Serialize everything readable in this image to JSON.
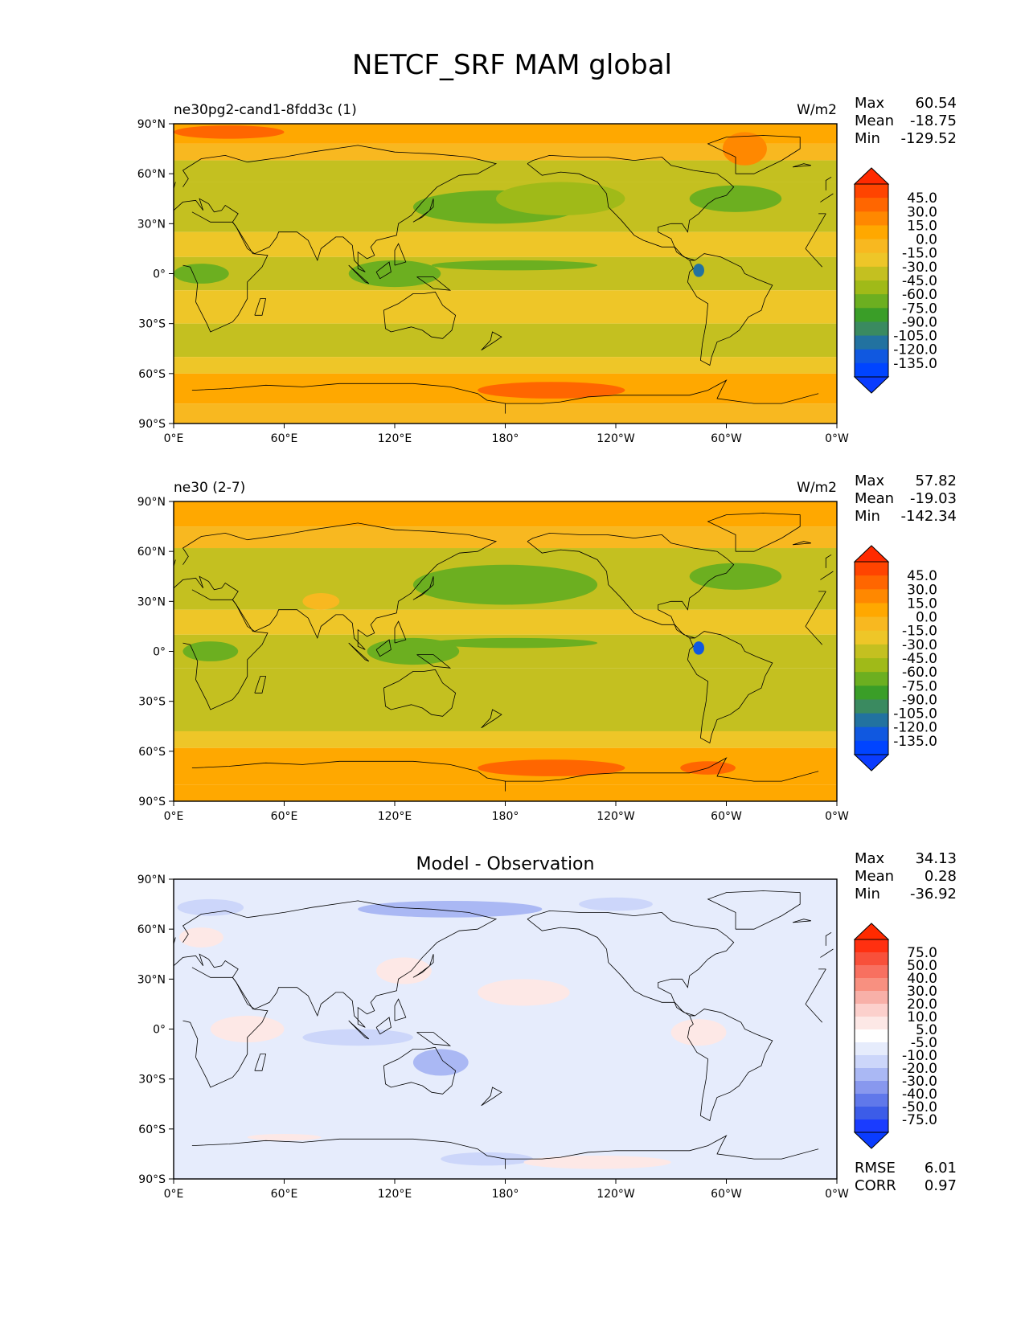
{
  "figure": {
    "title": "NETCF_SRF MAM global"
  },
  "chart_data": [
    {
      "type": "heatmap",
      "title_left": "ne30pg2-cand1-8fdd3c (1)",
      "title_center": "",
      "units": "W/m2",
      "stats": [
        {
          "label": "Max",
          "value": "60.54"
        },
        {
          "label": "Mean",
          "value": "-18.75"
        },
        {
          "label": "Min",
          "value": "-129.52"
        }
      ],
      "yticks": [
        "90°N",
        "60°N",
        "30°N",
        "0°",
        "30°S",
        "60°S",
        "90°S"
      ],
      "xticks": [
        "0°E",
        "60°E",
        "120°E",
        "180°",
        "120°W",
        "60°W",
        "0°W"
      ],
      "colorbar_labels": [
        "45.0",
        "30.0",
        "15.0",
        "0.0",
        "-15.0",
        "-30.0",
        "-45.0",
        "-60.0",
        "-75.0",
        "-90.0",
        "-105.0",
        "-120.0",
        "-135.0"
      ],
      "colorbar_colors": [
        "#ff4400",
        "#ff6600",
        "#ff8800",
        "#ffa800",
        "#f8b820",
        "#eec628",
        "#c4c020",
        "#a0ba18",
        "#6caf20",
        "#3a9e28",
        "#3a8a60",
        "#2272a0",
        "#1058e0",
        "#0044ff"
      ],
      "extremes": {
        "top": "#ff2a00",
        "bottom": "#0a3cff"
      },
      "bands": [
        {
          "lat_top": 90,
          "lat_bottom": 78,
          "level": "15.0"
        },
        {
          "lat_top": 78,
          "lat_bottom": 68,
          "level": "0.0"
        },
        {
          "lat_top": 68,
          "lat_bottom": 55,
          "level": "-30.0"
        },
        {
          "lat_top": 55,
          "lat_bottom": 25,
          "level": "-30.0"
        },
        {
          "lat_top": 25,
          "lat_bottom": 10,
          "level": "-15.0"
        },
        {
          "lat_top": 10,
          "lat_bottom": -10,
          "level": "-30.0"
        },
        {
          "lat_top": -10,
          "lat_bottom": -30,
          "level": "-15.0"
        },
        {
          "lat_top": -30,
          "lat_bottom": -50,
          "level": "-30.0"
        },
        {
          "lat_top": -50,
          "lat_bottom": -60,
          "level": "-15.0"
        },
        {
          "lat_top": -60,
          "lat_bottom": -78,
          "level": "15.0"
        },
        {
          "lat_top": -78,
          "lat_bottom": -90,
          "level": "0.0"
        }
      ],
      "anomalies": [
        {
          "lon": 175,
          "lat": 40,
          "rlon": 45,
          "rlat": 10,
          "level": "-60.0"
        },
        {
          "lon": 210,
          "lat": 45,
          "rlon": 35,
          "rlat": 10,
          "level": "-45.0"
        },
        {
          "lon": 305,
          "lat": 45,
          "rlon": 25,
          "rlat": 8,
          "level": "-60.0"
        },
        {
          "lon": 185,
          "lat": 5,
          "rlon": 45,
          "rlat": 3,
          "level": "-60.0"
        },
        {
          "lon": 285,
          "lat": 2,
          "rlon": 3,
          "rlat": 4,
          "level": "-105.0"
        },
        {
          "lon": 15,
          "lat": 0,
          "rlon": 15,
          "rlat": 6,
          "level": "-60.0"
        },
        {
          "lon": 120,
          "lat": 0,
          "rlon": 25,
          "rlat": 8,
          "level": "-60.0"
        },
        {
          "lon": 310,
          "lat": 75,
          "rlon": 12,
          "rlat": 10,
          "level": "30.0"
        },
        {
          "lon": 205,
          "lat": -70,
          "rlon": 40,
          "rlat": 5,
          "level": "45.0"
        },
        {
          "lon": 30,
          "lat": 85,
          "rlon": 30,
          "rlat": 4,
          "level": "45.0"
        }
      ]
    },
    {
      "type": "heatmap",
      "title_left": "ne30 (2-7)",
      "title_center": "",
      "units": "W/m2",
      "stats": [
        {
          "label": "Max",
          "value": "57.82"
        },
        {
          "label": "Mean",
          "value": "-19.03"
        },
        {
          "label": "Min",
          "value": "-142.34"
        }
      ],
      "yticks": [
        "90°N",
        "60°N",
        "30°N",
        "0°",
        "30°S",
        "60°S",
        "90°S"
      ],
      "xticks": [
        "0°E",
        "60°E",
        "120°E",
        "180°",
        "120°W",
        "60°W",
        "0°W"
      ],
      "colorbar_labels": [
        "45.0",
        "30.0",
        "15.0",
        "0.0",
        "-15.0",
        "-30.0",
        "-45.0",
        "-60.0",
        "-75.0",
        "-90.0",
        "-105.0",
        "-120.0",
        "-135.0"
      ],
      "colorbar_colors": [
        "#ff4400",
        "#ff6600",
        "#ff8800",
        "#ffa800",
        "#f8b820",
        "#eec628",
        "#c4c020",
        "#a0ba18",
        "#6caf20",
        "#3a9e28",
        "#3a8a60",
        "#2272a0",
        "#1058e0",
        "#0044ff"
      ],
      "extremes": {
        "top": "#ff2a00",
        "bottom": "#0a3cff"
      },
      "bands": [
        {
          "lat_top": 90,
          "lat_bottom": 75,
          "level": "15.0"
        },
        {
          "lat_top": 75,
          "lat_bottom": 62,
          "level": "0.0"
        },
        {
          "lat_top": 62,
          "lat_bottom": 25,
          "level": "-30.0"
        },
        {
          "lat_top": 25,
          "lat_bottom": 10,
          "level": "-15.0"
        },
        {
          "lat_top": 10,
          "lat_bottom": -10,
          "level": "-30.0"
        },
        {
          "lat_top": -10,
          "lat_bottom": -48,
          "level": "-30.0"
        },
        {
          "lat_top": -48,
          "lat_bottom": -58,
          "level": "-15.0"
        },
        {
          "lat_top": -58,
          "lat_bottom": -80,
          "level": "15.0"
        },
        {
          "lat_top": -80,
          "lat_bottom": -90,
          "level": "15.0"
        }
      ],
      "anomalies": [
        {
          "lon": 180,
          "lat": 40,
          "rlon": 50,
          "rlat": 12,
          "level": "-60.0"
        },
        {
          "lon": 305,
          "lat": 45,
          "rlon": 25,
          "rlat": 8,
          "level": "-60.0"
        },
        {
          "lon": 185,
          "lat": 5,
          "rlon": 45,
          "rlat": 3,
          "level": "-60.0"
        },
        {
          "lon": 285,
          "lat": 2,
          "rlon": 3,
          "rlat": 4,
          "level": "-120.0"
        },
        {
          "lon": 20,
          "lat": 0,
          "rlon": 15,
          "rlat": 6,
          "level": "-60.0"
        },
        {
          "lon": 130,
          "lat": 0,
          "rlon": 25,
          "rlat": 8,
          "level": "-60.0"
        },
        {
          "lon": 80,
          "lat": 30,
          "rlon": 10,
          "rlat": 5,
          "level": "0.0"
        },
        {
          "lon": 205,
          "lat": -70,
          "rlon": 40,
          "rlat": 5,
          "level": "45.0"
        },
        {
          "lon": 290,
          "lat": -70,
          "rlon": 15,
          "rlat": 4,
          "level": "45.0"
        }
      ]
    },
    {
      "type": "heatmap",
      "title_left": "",
      "title_center": "Model - Observation",
      "units": "",
      "stats": [
        {
          "label": "Max",
          "value": "34.13"
        },
        {
          "label": "Mean",
          "value": "0.28"
        },
        {
          "label": "Min",
          "value": "-36.92"
        }
      ],
      "bottom_stats": [
        {
          "label": "RMSE",
          "value": "6.01"
        },
        {
          "label": "CORR",
          "value": "0.97"
        }
      ],
      "yticks": [
        "90°N",
        "60°N",
        "30°N",
        "0°",
        "30°S",
        "60°S",
        "90°S"
      ],
      "xticks": [
        "0°E",
        "60°E",
        "120°E",
        "180°",
        "120°W",
        "60°W",
        "0°W"
      ],
      "colorbar_labels": [
        "75.0",
        "50.0",
        "40.0",
        "30.0",
        "20.0",
        "10.0",
        "5.0",
        "-5.0",
        "-10.0",
        "-20.0",
        "-30.0",
        "-40.0",
        "-50.0",
        "-75.0"
      ],
      "colorbar_colors": [
        "#ff3010",
        "#f8503a",
        "#f87060",
        "#f89080",
        "#f8b0a8",
        "#fcd0cc",
        "#fde8e6",
        "#ffffff",
        "#e6ecfc",
        "#ccd6fa",
        "#aab8f4",
        "#8898ee",
        "#6078ea",
        "#3c5ce8",
        "#1a3cff"
      ],
      "extremes": {
        "top": "#ff2a00",
        "bottom": "#0a3cff"
      },
      "bands": [
        {
          "lat_top": 90,
          "lat_bottom": -90,
          "level": "-5.0"
        }
      ],
      "anomalies": [
        {
          "lon": 150,
          "lat": 72,
          "rlon": 50,
          "rlat": 5,
          "level": "-20.0"
        },
        {
          "lon": 20,
          "lat": 73,
          "rlon": 18,
          "rlat": 5,
          "level": "-10.0"
        },
        {
          "lon": 240,
          "lat": 75,
          "rlon": 20,
          "rlat": 4,
          "level": "-10.0"
        },
        {
          "lon": 15,
          "lat": 55,
          "rlon": 12,
          "rlat": 6,
          "level": "10.0"
        },
        {
          "lon": 125,
          "lat": 35,
          "rlon": 15,
          "rlat": 8,
          "level": "10.0"
        },
        {
          "lon": 190,
          "lat": 22,
          "rlon": 25,
          "rlat": 8,
          "level": "10.0"
        },
        {
          "lon": 40,
          "lat": 0,
          "rlon": 20,
          "rlat": 8,
          "level": "10.0"
        },
        {
          "lon": 285,
          "lat": -2,
          "rlon": 15,
          "rlat": 8,
          "level": "10.0"
        },
        {
          "lon": 100,
          "lat": -5,
          "rlon": 30,
          "rlat": 5,
          "level": "-10.0"
        },
        {
          "lon": 145,
          "lat": -20,
          "rlon": 15,
          "rlat": 8,
          "level": "-20.0"
        },
        {
          "lon": 170,
          "lat": -78,
          "rlon": 25,
          "rlat": 4,
          "level": "-10.0"
        },
        {
          "lon": 230,
          "lat": -80,
          "rlon": 40,
          "rlat": 4,
          "level": "10.0"
        },
        {
          "lon": 60,
          "lat": -65,
          "rlon": 20,
          "rlat": 2,
          "level": "10.0"
        }
      ]
    }
  ]
}
